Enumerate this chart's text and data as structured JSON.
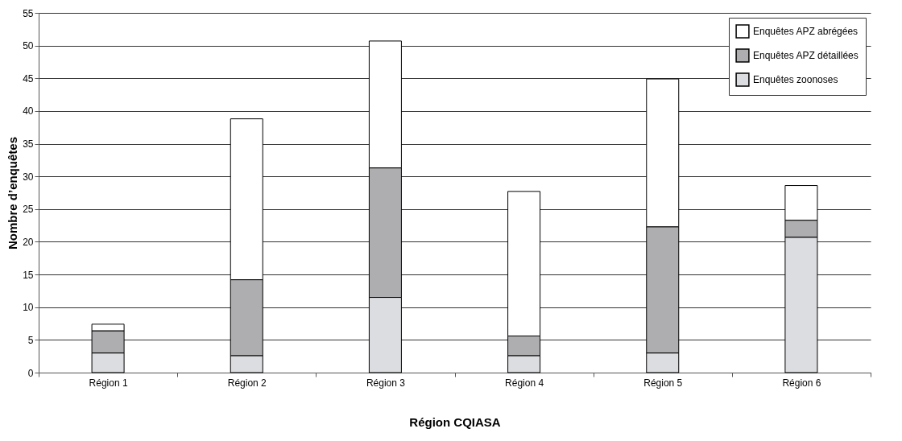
{
  "chart_data": {
    "type": "bar",
    "stacked": true,
    "xlabel": "Région CQIASA",
    "ylabel": "Nombre d’enquêtes",
    "categories": [
      "Région 1",
      "Région 2",
      "Région 3",
      "Région 4",
      "Région 5",
      "Région 6"
    ],
    "series": [
      {
        "name": "Enquêtes zoonoses",
        "color": "#dcdde0",
        "values": [
          3,
          2.6,
          11.5,
          2.6,
          3,
          20.7
        ]
      },
      {
        "name": "Enquêtes APZ détaillées",
        "color": "#aeaeb0",
        "values": [
          3.4,
          11.6,
          19.8,
          3,
          19.3,
          2.6
        ]
      },
      {
        "name": "Enquêtes APZ abrégées",
        "color": "#ffffff",
        "values": [
          1,
          24.6,
          19.4,
          22.1,
          22.6,
          5.3
        ]
      }
    ],
    "ylim": [
      0,
      55
    ],
    "yticks": [
      0,
      5,
      10,
      15,
      20,
      25,
      30,
      35,
      40,
      45,
      50,
      55
    ],
    "grid": "y",
    "legend": "top right"
  }
}
